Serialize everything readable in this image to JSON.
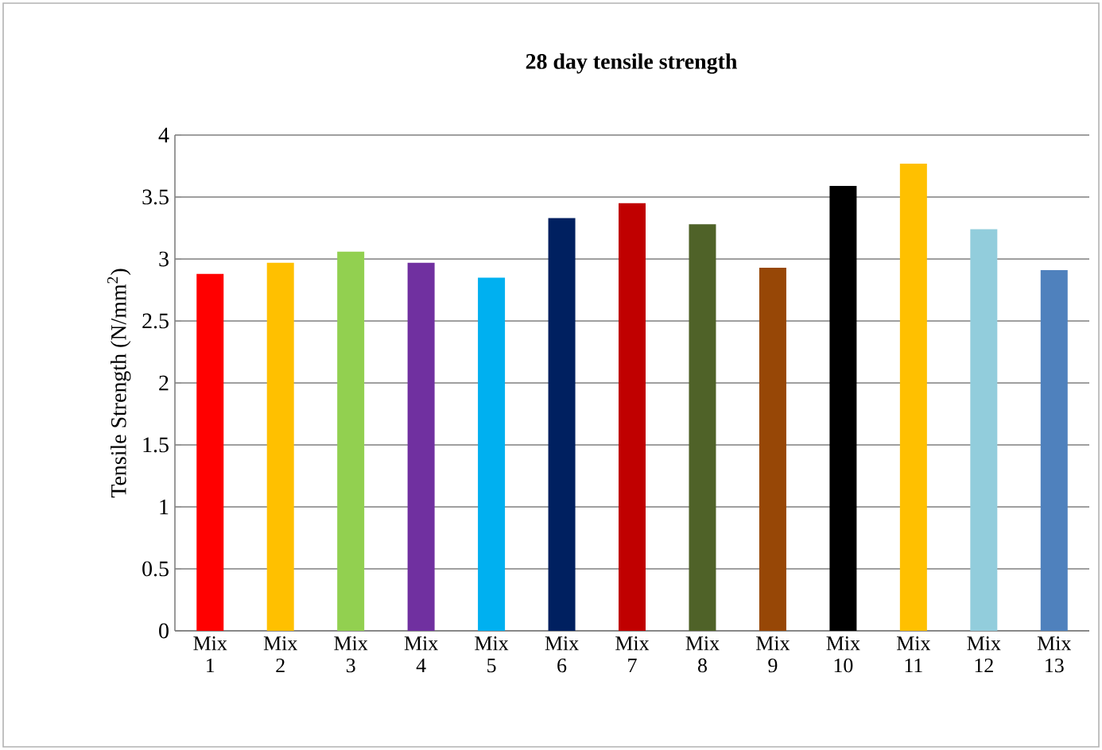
{
  "chart_data": {
    "type": "bar",
    "title": "28 day tensile strength",
    "ylabel": "Tensile Strength (N/mm$^{2}$)",
    "categories": [
      "Mix 1",
      "Mix 2",
      "Mix 3",
      "Mix 4",
      "Mix 5",
      "Mix 6",
      "Mix 7",
      "Mix 8",
      "Mix 9",
      "Mix 10",
      "Mix 11",
      "Mix 12",
      "Mix 13"
    ],
    "values": [
      2.88,
      2.97,
      3.06,
      2.97,
      2.85,
      3.33,
      3.45,
      3.28,
      2.93,
      3.59,
      3.77,
      3.24,
      2.91
    ],
    "colors": [
      "#ff0000",
      "#ffc000",
      "#92d050",
      "#7030a0",
      "#00b0f0",
      "#002060",
      "#c00000",
      "#4f6228",
      "#974706",
      "#000000",
      "#ffc000",
      "#92cddc",
      "#4f81bd"
    ],
    "ylim": [
      0,
      4
    ],
    "yticks": [
      0,
      0.5,
      1,
      1.5,
      2,
      2.5,
      3,
      3.5,
      4
    ],
    "grid": "y"
  }
}
